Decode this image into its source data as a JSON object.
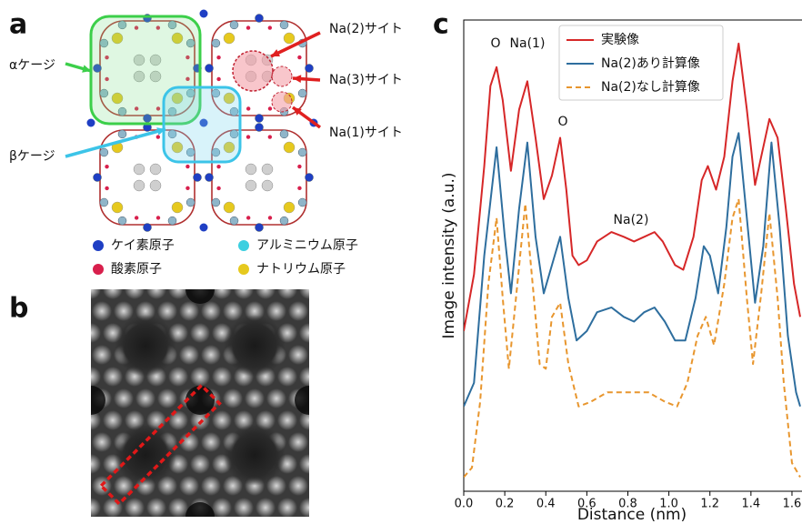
{
  "panel_labels": [
    "a",
    "b",
    "c"
  ],
  "structure": {
    "cage_labels": [
      "αケージ",
      "βケージ"
    ],
    "site_labels": [
      "Na(2)サイト",
      "Na(3)サイト",
      "Na(1)サイト"
    ],
    "atom_legend": [
      {
        "label": "ケイ素原子",
        "color": "#1f3fc4"
      },
      {
        "label": "アルミニウム原子",
        "color": "#3ccfe0"
      },
      {
        "label": "酸素原子",
        "color": "#d81f4c"
      },
      {
        "label": "ナトリウム原子",
        "color": "#e6c91e"
      }
    ]
  },
  "chart_data": {
    "type": "line",
    "xlabel": "Distance (nm)",
    "ylabel": "Image intensity (a.u.)",
    "xlim": [
      0,
      1.64
    ],
    "ylim": [
      0,
      1
    ],
    "xticks": [
      {
        "value": 0,
        "label": "0.0"
      },
      0.2,
      0.4,
      0.6,
      0.8,
      {
        "value": 1,
        "label": "1.0"
      },
      1.2,
      1.4,
      1.6
    ],
    "legend": "upper center",
    "annotations": [
      "O",
      "Na(1)",
      "O",
      "Na(2)"
    ],
    "series": [
      {
        "name": "実験像",
        "color": "#d62728",
        "dash": false,
        "x": [
          0,
          0.05,
          0.1,
          0.13,
          0.16,
          0.19,
          0.23,
          0.27,
          0.31,
          0.35,
          0.39,
          0.43,
          0.47,
          0.5,
          0.53,
          0.56,
          0.6,
          0.65,
          0.72,
          0.78,
          0.83,
          0.88,
          0.93,
          0.97,
          1.03,
          1.07,
          1.12,
          1.16,
          1.19,
          1.23,
          1.27,
          1.31,
          1.34,
          1.38,
          1.42,
          1.45,
          1.49,
          1.53,
          1.57,
          1.61,
          1.64
        ],
        "values": [
          0.34,
          0.46,
          0.69,
          0.86,
          0.9,
          0.83,
          0.68,
          0.81,
          0.87,
          0.75,
          0.62,
          0.67,
          0.75,
          0.64,
          0.5,
          0.48,
          0.49,
          0.53,
          0.55,
          0.54,
          0.53,
          0.54,
          0.55,
          0.53,
          0.48,
          0.47,
          0.54,
          0.66,
          0.69,
          0.64,
          0.71,
          0.87,
          0.95,
          0.81,
          0.65,
          0.71,
          0.79,
          0.75,
          0.6,
          0.44,
          0.37
        ]
      },
      {
        "name": "Na(2)あり計算像",
        "color": "#2e6e9e",
        "dash": false,
        "x": [
          0,
          0.05,
          0.1,
          0.16,
          0.2,
          0.23,
          0.27,
          0.31,
          0.35,
          0.39,
          0.43,
          0.47,
          0.51,
          0.55,
          0.6,
          0.65,
          0.72,
          0.78,
          0.83,
          0.88,
          0.93,
          0.98,
          1.03,
          1.08,
          1.13,
          1.17,
          1.2,
          1.24,
          1.28,
          1.31,
          1.34,
          1.38,
          1.42,
          1.46,
          1.5,
          1.54,
          1.58,
          1.62,
          1.64
        ],
        "values": [
          0.18,
          0.23,
          0.5,
          0.73,
          0.54,
          0.42,
          0.6,
          0.74,
          0.54,
          0.42,
          0.48,
          0.54,
          0.41,
          0.32,
          0.34,
          0.38,
          0.39,
          0.37,
          0.36,
          0.38,
          0.39,
          0.36,
          0.32,
          0.32,
          0.41,
          0.52,
          0.5,
          0.42,
          0.56,
          0.71,
          0.76,
          0.58,
          0.4,
          0.52,
          0.74,
          0.56,
          0.33,
          0.21,
          0.18
        ]
      },
      {
        "name": "Na(2)なし計算像",
        "color": "#e8962e",
        "dash": true,
        "x": [
          0,
          0.04,
          0.08,
          0.12,
          0.16,
          0.19,
          0.22,
          0.25,
          0.3,
          0.34,
          0.37,
          0.4,
          0.43,
          0.47,
          0.51,
          0.56,
          0.62,
          0.7,
          0.8,
          0.9,
          0.98,
          1.04,
          1.09,
          1.14,
          1.18,
          1.22,
          1.27,
          1.31,
          1.34,
          1.38,
          1.41,
          1.45,
          1.49,
          1.53,
          1.56,
          1.6,
          1.64
        ],
        "values": [
          0.03,
          0.05,
          0.19,
          0.44,
          0.58,
          0.41,
          0.26,
          0.39,
          0.61,
          0.42,
          0.27,
          0.26,
          0.37,
          0.4,
          0.27,
          0.18,
          0.19,
          0.21,
          0.21,
          0.21,
          0.19,
          0.18,
          0.23,
          0.33,
          0.37,
          0.31,
          0.44,
          0.58,
          0.62,
          0.41,
          0.27,
          0.42,
          0.59,
          0.41,
          0.23,
          0.06,
          0.03
        ]
      }
    ]
  }
}
